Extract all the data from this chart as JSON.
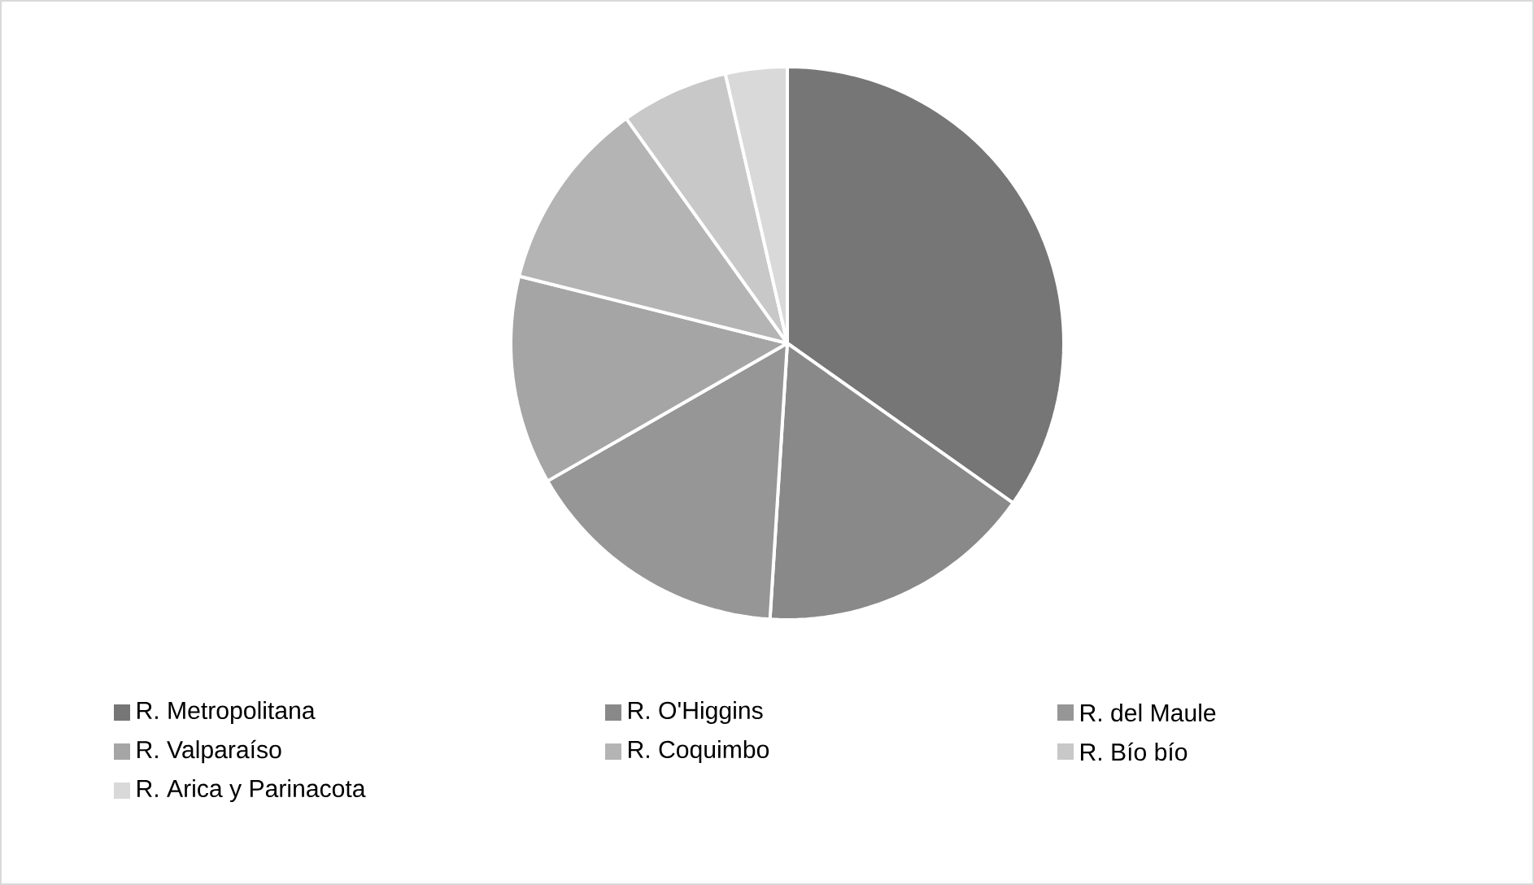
{
  "chart_data": {
    "type": "pie",
    "categories": [
      "R. Metropolitana",
      "R. O'Higgins",
      "R. del Maule",
      "R. Valparaíso",
      "R. Coquimbo",
      "R. Bío bío",
      "R. Arica y Parinacota"
    ],
    "values": [
      34.8,
      16.2,
      15.7,
      12.2,
      11.2,
      6.3,
      3.6
    ],
    "colors": [
      "#767676",
      "#898989",
      "#969696",
      "#a5a5a5",
      "#b4b4b4",
      "#c8c8c8",
      "#d9d9d9"
    ],
    "legend": "bottom"
  }
}
